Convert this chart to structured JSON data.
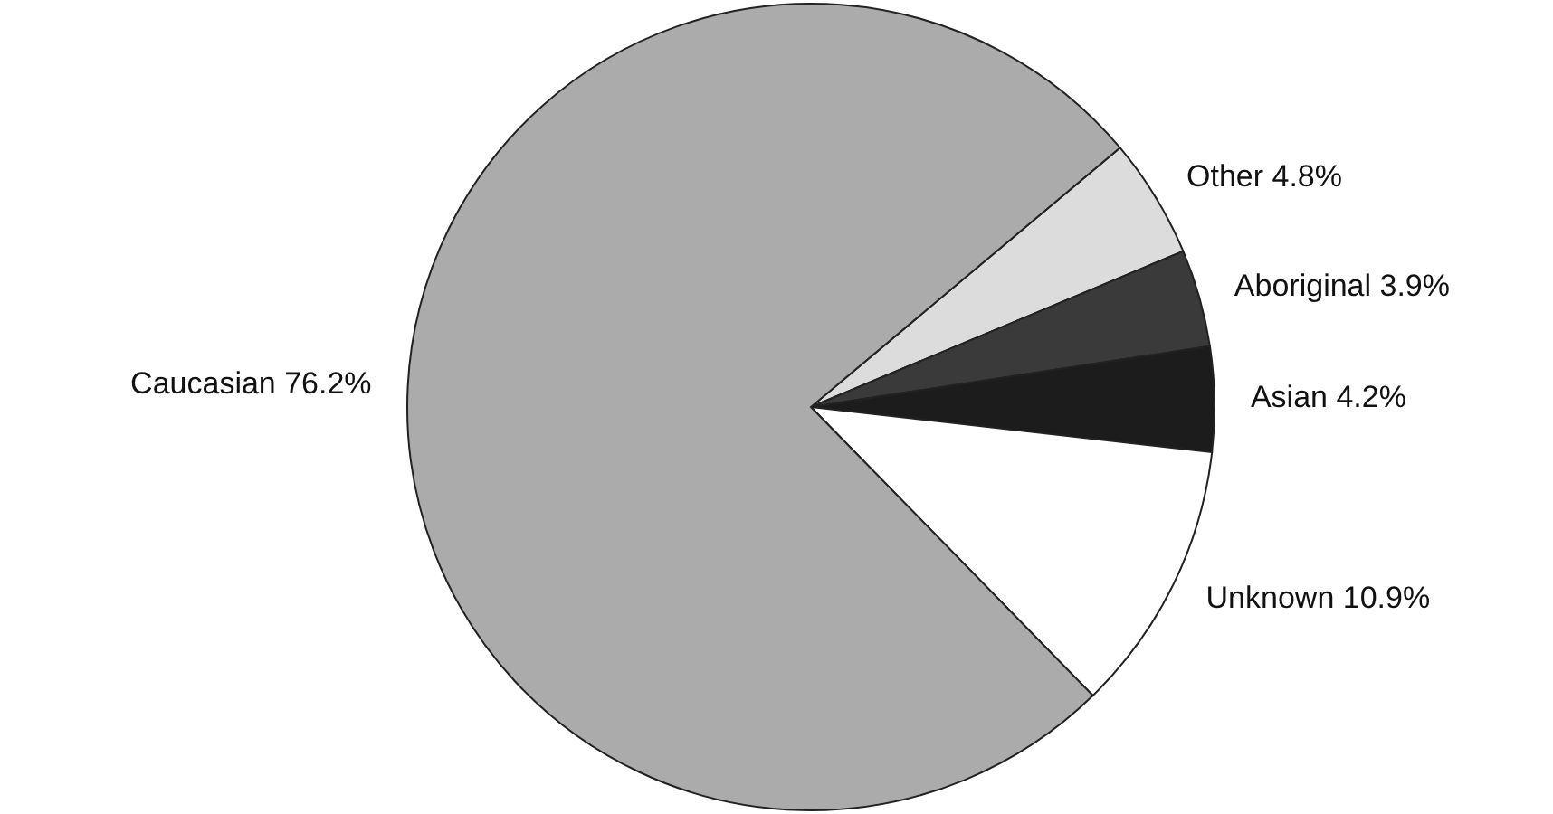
{
  "chart_data": {
    "type": "pie",
    "categories": [
      "Other",
      "Aboriginal",
      "Asian",
      "Unknown",
      "Caucasian"
    ],
    "values": [
      4.8,
      3.9,
      4.2,
      10.9,
      76.2
    ],
    "value_labels": [
      "4.8%",
      "3.9%",
      "4.2%",
      "10.9%",
      "76.2%"
    ],
    "colors": [
      "#dcdcdc",
      "#3a3a3a",
      "#1c1c1c",
      "#ffffff",
      "#ababab"
    ]
  }
}
